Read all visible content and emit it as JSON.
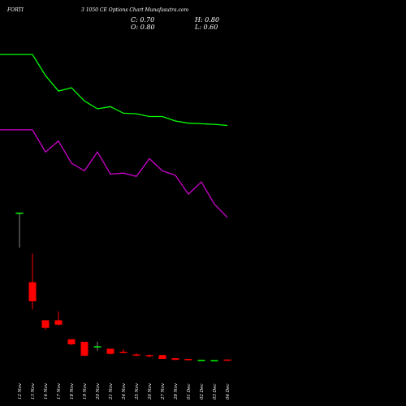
{
  "header": {
    "symbol": "FORTI",
    "title": "3 1050  CE Options  Chart Munafasutra.com"
  },
  "ohlc": {
    "close": "C: 0.70",
    "open": "O: 0.80",
    "high": "H: 0.80",
    "low": "L: 0.60"
  },
  "colors": {
    "background": "#000000",
    "bull": "#00ff00",
    "bear": "#ff0000",
    "ma_fast": "#00ff00",
    "ma_slow": "#cc00cc",
    "text": "#ffffff"
  },
  "chart_data": {
    "type": "candlestick",
    "categories": [
      "12 Nov",
      "13 Nov",
      "14 Nov",
      "17 Nov",
      "18 Nov",
      "19 Nov",
      "20 Nov",
      "21 Nov",
      "24 Nov",
      "25 Nov",
      "26 Nov",
      "27 Nov",
      "28 Nov",
      "01 Dec",
      "02 Dec",
      "03 Dec",
      "04 Dec"
    ],
    "candles": [
      {
        "open": 24.0,
        "high": 24.0,
        "low": 18.5,
        "close": 24.0
      },
      {
        "open": 13.0,
        "high": 17.5,
        "low": 8.7,
        "close": 10.0
      },
      {
        "open": 7.0,
        "high": 7.0,
        "low": 5.5,
        "close": 5.8
      },
      {
        "open": 7.0,
        "high": 8.4,
        "low": 6.2,
        "close": 6.3
      },
      {
        "open": 4.0,
        "high": 4.0,
        "low": 3.1,
        "close": 3.2
      },
      {
        "open": 3.6,
        "high": 3.6,
        "low": 1.3,
        "close": 1.4
      },
      {
        "open": 2.9,
        "high": 3.6,
        "low": 2.2,
        "close": 2.9
      },
      {
        "open": 2.5,
        "high": 2.5,
        "low": 1.6,
        "close": 1.7
      },
      {
        "open": 2.0,
        "high": 2.4,
        "low": 1.8,
        "close": 1.9
      },
      {
        "open": 1.6,
        "high": 1.8,
        "low": 1.4,
        "close": 1.5
      },
      {
        "open": 1.5,
        "high": 1.6,
        "low": 1.1,
        "close": 1.4
      },
      {
        "open": 1.5,
        "high": 1.5,
        "low": 0.9,
        "close": 0.9
      },
      {
        "open": 1.0,
        "high": 1.0,
        "low": 0.7,
        "close": 0.75
      },
      {
        "open": 0.9,
        "high": 0.9,
        "low": 0.65,
        "close": 0.7
      },
      {
        "open": 0.75,
        "high": 0.75,
        "low": 0.7,
        "close": 0.75
      },
      {
        "open": 0.7,
        "high": 0.7,
        "low": 0.7,
        "close": 0.7
      },
      {
        "open": 0.8,
        "high": 0.8,
        "low": 0.6,
        "close": 0.7
      }
    ],
    "series": [
      {
        "type": "line",
        "color": "#00ff00",
        "values": [
          12.3,
          12.3,
          10.4,
          9.0,
          9.3,
          8.1,
          7.4,
          7.6,
          7.0,
          6.95,
          6.7,
          6.7,
          6.3,
          6.1,
          6.05,
          6.0,
          5.9
        ]
      },
      {
        "type": "line",
        "color": "#cc00cc",
        "values": [
          5.5,
          5.5,
          3.5,
          4.5,
          2.5,
          1.8,
          3.5,
          1.5,
          1.6,
          1.3,
          2.9,
          1.8,
          1.4,
          -0.3,
          0.8,
          -1.2,
          -2.4
        ]
      }
    ]
  }
}
